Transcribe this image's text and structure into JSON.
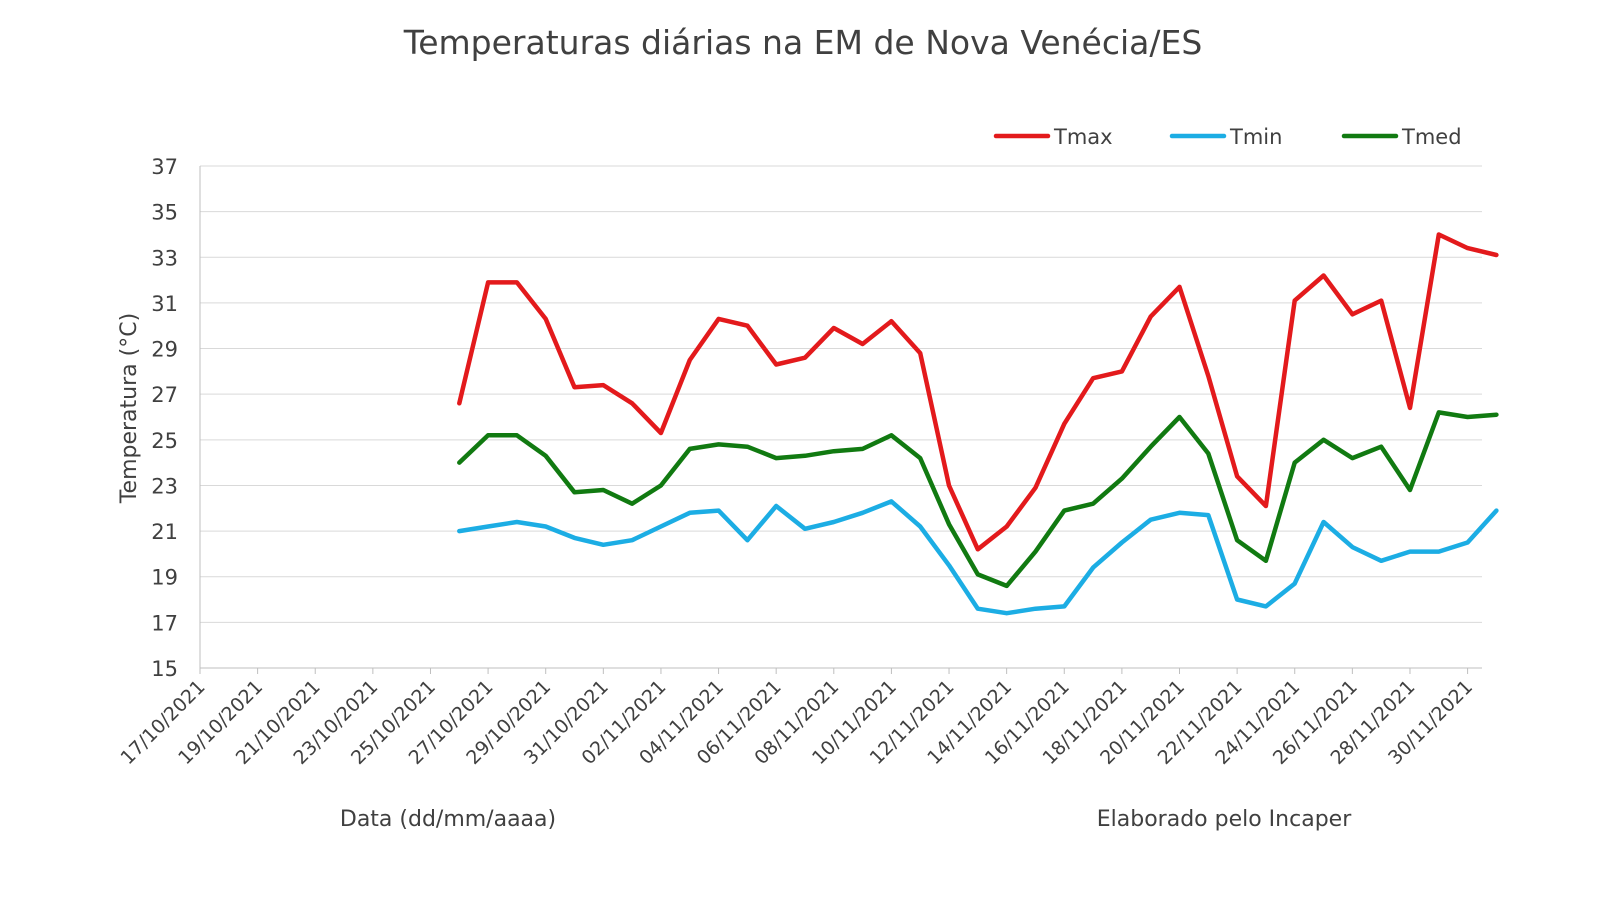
{
  "chart_data": {
    "type": "line",
    "title": "Temperaturas diárias na EM de Nova Venécia/ES",
    "xlabel": "Data (dd/mm/aaaa)",
    "ylabel": "Temperatura (°C)",
    "note": "Elaborado pelo Incaper",
    "ylim": [
      15,
      37
    ],
    "yticks": [
      15,
      17,
      19,
      21,
      23,
      25,
      27,
      29,
      31,
      33,
      35,
      37
    ],
    "grid": true,
    "legend_position": "top-right",
    "x_start": "17/10/2021",
    "x_end": "30/11/2021",
    "xticks": [
      "17/10/2021",
      "19/10/2021",
      "21/10/2021",
      "23/10/2021",
      "25/10/2021",
      "27/10/2021",
      "29/10/2021",
      "31/10/2021",
      "02/11/2021",
      "04/11/2021",
      "06/11/2021",
      "08/11/2021",
      "10/11/2021",
      "12/11/2021",
      "14/11/2021",
      "16/11/2021",
      "18/11/2021",
      "20/11/2021",
      "22/11/2021",
      "24/11/2021",
      "26/11/2021",
      "28/11/2021",
      "30/11/2021"
    ],
    "x": [
      "26/10/2021",
      "27/10/2021",
      "28/10/2021",
      "29/10/2021",
      "30/10/2021",
      "31/10/2021",
      "01/11/2021",
      "02/11/2021",
      "03/11/2021",
      "04/11/2021",
      "05/11/2021",
      "06/11/2021",
      "07/11/2021",
      "08/11/2021",
      "09/11/2021",
      "10/11/2021",
      "11/11/2021",
      "12/11/2021",
      "13/11/2021",
      "14/11/2021",
      "15/11/2021",
      "16/11/2021",
      "17/11/2021",
      "18/11/2021",
      "19/11/2021",
      "20/11/2021",
      "21/11/2021",
      "22/11/2021",
      "23/11/2021",
      "24/11/2021",
      "25/11/2021",
      "26/11/2021",
      "27/11/2021",
      "28/11/2021",
      "29/11/2021",
      "30/11/2021",
      "01/12/2021"
    ],
    "series": [
      {
        "name": "Tmax",
        "color": "#e31a1c",
        "values": [
          26.6,
          31.9,
          31.9,
          30.3,
          27.3,
          27.4,
          26.6,
          25.3,
          28.5,
          30.3,
          30.0,
          28.3,
          28.6,
          29.9,
          29.2,
          30.2,
          28.8,
          23.0,
          20.2,
          21.2,
          22.9,
          25.7,
          27.7,
          28.0,
          30.4,
          31.7,
          27.8,
          23.4,
          22.1,
          31.1,
          32.2,
          30.5,
          31.1,
          26.4,
          34.0,
          33.4,
          33.1
        ]
      },
      {
        "name": "Tmin",
        "color": "#1cade4",
        "values": [
          21.0,
          21.2,
          21.4,
          21.2,
          20.7,
          20.4,
          20.6,
          21.2,
          21.8,
          21.9,
          20.6,
          22.1,
          21.1,
          21.4,
          21.8,
          22.3,
          21.2,
          19.5,
          17.6,
          17.4,
          17.6,
          17.7,
          19.4,
          20.5,
          21.5,
          21.8,
          21.7,
          18.0,
          17.7,
          18.7,
          21.4,
          20.3,
          19.7,
          20.1,
          20.1,
          20.5,
          21.9
        ]
      },
      {
        "name": "Tmed",
        "color": "#117a11",
        "values": [
          24.0,
          25.2,
          25.2,
          24.3,
          22.7,
          22.8,
          22.2,
          23.0,
          24.6,
          24.8,
          24.7,
          24.2,
          24.3,
          24.5,
          24.6,
          25.2,
          24.2,
          21.3,
          19.1,
          18.6,
          20.1,
          21.9,
          22.2,
          23.3,
          24.7,
          26.0,
          24.4,
          20.6,
          19.7,
          24.0,
          25.0,
          24.2,
          24.7,
          22.8,
          26.2,
          26.0,
          26.1
        ]
      }
    ]
  }
}
